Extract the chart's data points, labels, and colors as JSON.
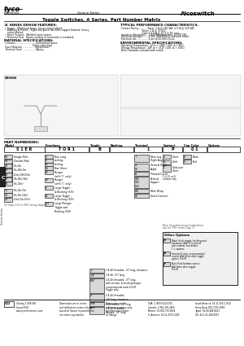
{
  "bg_color": "#ffffff",
  "title": "Toggle Switches, A Series, Part Number Matrix",
  "brand": "tyco",
  "sub_brand": "Electronics",
  "series": "Gemini Series",
  "product_line": "Alcoswitch",
  "page_num": "C22",
  "design_features_title": "'A' SERIES DESIGN FEATURES:",
  "design_features": [
    "Toggle - Machined brass, heavy nickel plated.",
    "Bushing & Frame - Rigid one-piece die cast, copper flashed, heavy",
    "  nickel plated.",
    "Panel Contact - Welded construction.",
    "Terminal Seal - Epoxy sealing of terminals is standard."
  ],
  "material_title": "MATERIAL SPECIFICATIONS:",
  "material_items": [
    "Contacts ........................Gold plated brass",
    "                                  Silver over lead",
    "Case Material ................Nylon/steel",
    "Terminal Seal .................Epoxy"
  ],
  "typical_title": "TYPICAL PERFORMANCE CHARACTERISTICS:",
  "typical_items": [
    "Contact Rating ............Silver: 2 A @ 250 VAC or 5 A @ 125 VAC",
    "                             Silver: 2 A @ 30 VDC",
    "                             Gold: 0.4 V A @ 20 S @ DC max.",
    "Insulation Resistance ...1,000 Megohms min. @ 500 VDC",
    "Dielectric Strength .......1,000 Volts RMS @ sea level initial",
    "Electrical Life ................5 per to 50,000 Cycles"
  ],
  "env_title": "ENVIRONMENTAL SPECIFICATIONS:",
  "env_items": [
    "Operating Temperature: -4F to + 185F (-20C to + 85C)",
    "Storage Temperature: -40F to + 212F (-40C to + 100C)",
    "Note: Hardware included with switch"
  ],
  "part_num_title": "PART NUMBERING:",
  "col_headers": [
    "Model",
    "Functions",
    "Toggle",
    "Bushing",
    "Terminal",
    "Contact",
    "Cap Color",
    "Options"
  ],
  "model_entries": [
    [
      "S1",
      "Single Pole"
    ],
    [
      "S2",
      "Double Pole"
    ],
    [
      "01",
      "On-On"
    ],
    [
      "02",
      "On-Off-On"
    ],
    [
      "03",
      "(On)-Off-(On)"
    ],
    [
      "07",
      "On-Off-(On)"
    ],
    [
      "04",
      "On-(On)"
    ]
  ],
  "model_entries2": [
    [
      "11",
      "On-On-On"
    ],
    [
      "12",
      "On-On-(On)"
    ],
    [
      "13",
      "(On)-On-(On)"
    ]
  ],
  "func_entries": [
    [
      "S",
      "Bat, Long"
    ],
    [
      "K",
      "Locking"
    ],
    [
      "K1",
      "Locking"
    ],
    [
      "S4",
      "Bat, Short"
    ],
    [
      "P3",
      "Plunger"
    ],
    [
      "",
      "(with 'C' only)"
    ],
    [
      "P4",
      "Plunger"
    ],
    [
      "",
      "(with 'C' only)"
    ],
    [
      "E",
      "Large Toggle -"
    ],
    [
      "",
      "& Bushing (S/S)"
    ],
    [
      "E1",
      "Large Toggle -"
    ],
    [
      "",
      "& Bushing (S/S)"
    ],
    [
      "F27",
      "Large Plunger"
    ],
    [
      "",
      "Toggle and"
    ],
    [
      "",
      "Bushing (S/S)"
    ]
  ],
  "bushing_entries": [
    [
      "Y",
      "1/4-40 threaded, .35\" long, clearance"
    ],
    [
      "Y/P",
      "1/4-40, .53\" long"
    ],
    [
      "N/M",
      "1/4-40 threaded, .37\" long,\nwith environ. & bushing flanges,\nenvironmental seals S & M\nToggle only"
    ],
    [
      "D",
      "1/4-40 threaded,\n.26\" long, clearance"
    ],
    [
      "DM6",
      "Unthreaded, .28\" long"
    ],
    [
      "R",
      "1/4-40 threaded,\nflanged, .39\" long"
    ]
  ],
  "terminal_entries": [
    [
      "T",
      "Wire Lug,\nRight Angle"
    ],
    [
      "V1\nV2",
      "Vertical Right\nAngle"
    ],
    [
      "A",
      "Printed Circuit"
    ],
    [
      "V30\nV40\nV50",
      "Vertical\nSupport"
    ],
    [
      "WS",
      "Wire Wrap"
    ],
    [
      "QC",
      "Quick Connect"
    ]
  ],
  "contact_entries": [
    [
      "S",
      "Silver"
    ],
    [
      "G",
      "Gold"
    ],
    [
      "C",
      "Gold-over\nSilver"
    ]
  ],
  "cap_color_entries": [
    [
      "B",
      "Black"
    ],
    [
      "R",
      "Red"
    ]
  ],
  "other_options": [
    [
      "S",
      "Black finish toggle, bushing and\nhardware. Add 'S' to end of\npart number, but before\nL, L options."
    ],
    [
      "K",
      "Internal O-ring, environmental\nsealed. Add letter after toggle\noption: S & M."
    ],
    [
      "P",
      "Auto-Push buttons source.\nAdd letter after toggle:\nS & M."
    ]
  ],
  "footer_cat": "Catalog 1.008.506\nIssued 9/04\nwww.tycoelectronics.com",
  "footer_dims": "Dimensions are in inches\nand millimeters unless otherwise\nspecified. Values in parentheses\nare metric equivalents.",
  "footer_ref": "Dimensions are for\nreference purposes only.\nSpecifications subject\nto change.",
  "footer_usa": "USA: 1-(800) 522-6752\nCanada: 1-905-470-4425\nMexico: 01-800-733-8926\nS. America: 54-11-4733-2200",
  "footer_intl": "South America: 55-11-3611-1514\nHong Kong: 852-2735-1688\nJapan: 81-44-844-8013\nUK: 44-1-41-408-0567"
}
